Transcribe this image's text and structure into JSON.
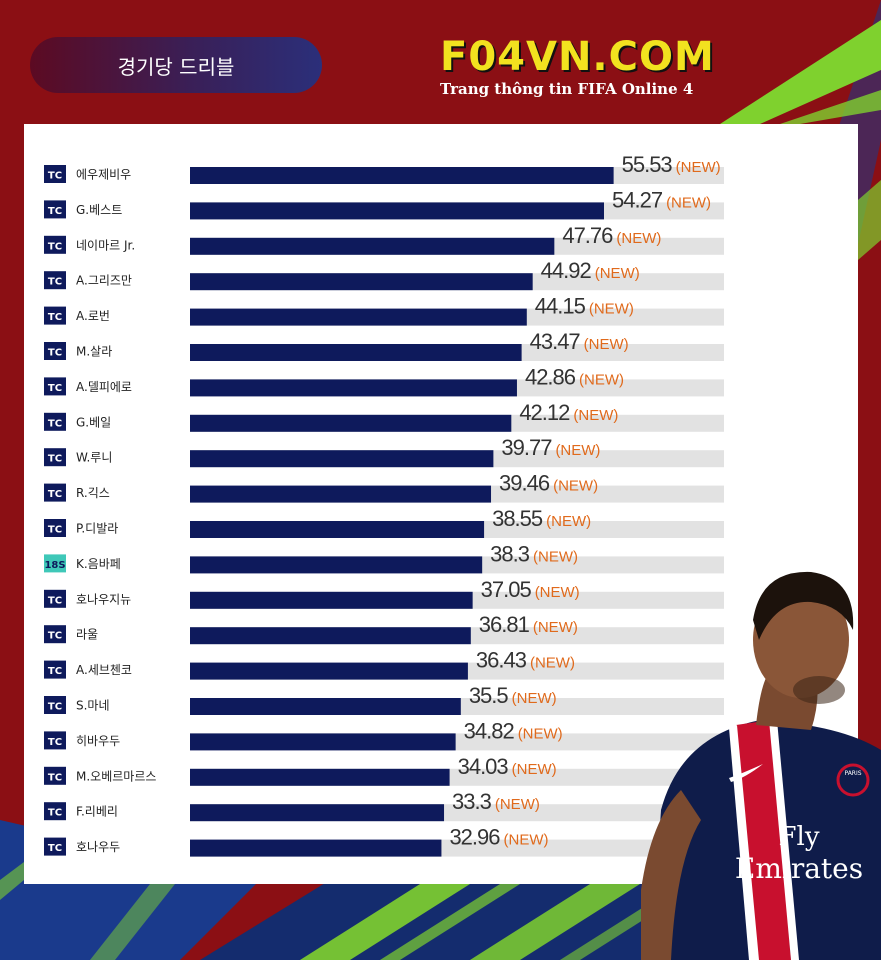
{
  "header": {
    "title": "경기당 드리블",
    "brand_name": "F04VN.COM",
    "brand_tagline": "Trang thông tin FIFA Online 4"
  },
  "colors": {
    "background": "#8b0f14",
    "bar_fill": "#0e1a5c",
    "bar_track": "#e2e2e2",
    "value_text": "#333333",
    "new_tag": "#e06a1c",
    "badge_tc": "#0e1a5c",
    "badge_18s": "#3fc8b8",
    "brand_yellow": "#f2e21f",
    "stripe_blue": "#1a3a8c",
    "stripe_green": "#7fd12e"
  },
  "chart_data": {
    "type": "bar",
    "orientation": "horizontal",
    "title": "경기당 드리블",
    "xlim": [
      0,
      70
    ],
    "new_label": "(NEW)",
    "rows": [
      {
        "badge": "TC",
        "player": "에우제비우",
        "value": 55.53
      },
      {
        "badge": "TC",
        "player": "G.베스트",
        "value": 54.27
      },
      {
        "badge": "TC",
        "player": "네이마르 Jr.",
        "value": 47.76
      },
      {
        "badge": "TC",
        "player": "A.그리즈만",
        "value": 44.92
      },
      {
        "badge": "TC",
        "player": "A.로번",
        "value": 44.15
      },
      {
        "badge": "TC",
        "player": "M.살라",
        "value": 43.47
      },
      {
        "badge": "TC",
        "player": "A.델피에로",
        "value": 42.86
      },
      {
        "badge": "TC",
        "player": "G.베일",
        "value": 42.12
      },
      {
        "badge": "TC",
        "player": "W.루니",
        "value": 39.77
      },
      {
        "badge": "TC",
        "player": "R.긱스",
        "value": 39.46
      },
      {
        "badge": "TC",
        "player": "P.디발라",
        "value": 38.55
      },
      {
        "badge": "18S",
        "player": "K.음바페",
        "value": 38.3
      },
      {
        "badge": "TC",
        "player": "호나우지뉴",
        "value": 37.05
      },
      {
        "badge": "TC",
        "player": "라울",
        "value": 36.81
      },
      {
        "badge": "TC",
        "player": "A.세브첸코",
        "value": 36.43
      },
      {
        "badge": "TC",
        "player": "S.마네",
        "value": 35.5
      },
      {
        "badge": "TC",
        "player": "히바우두",
        "value": 34.82
      },
      {
        "badge": "TC",
        "player": "M.오베르마르스",
        "value": 34.03
      },
      {
        "badge": "TC",
        "player": "F.리베리",
        "value": 33.3
      },
      {
        "badge": "TC",
        "player": "호나우두",
        "value": 32.96
      }
    ]
  },
  "player_photo": {
    "jersey_sponsor_line1": "Fly",
    "jersey_sponsor_line2": "Emirates",
    "crest_text": "PARIS"
  }
}
